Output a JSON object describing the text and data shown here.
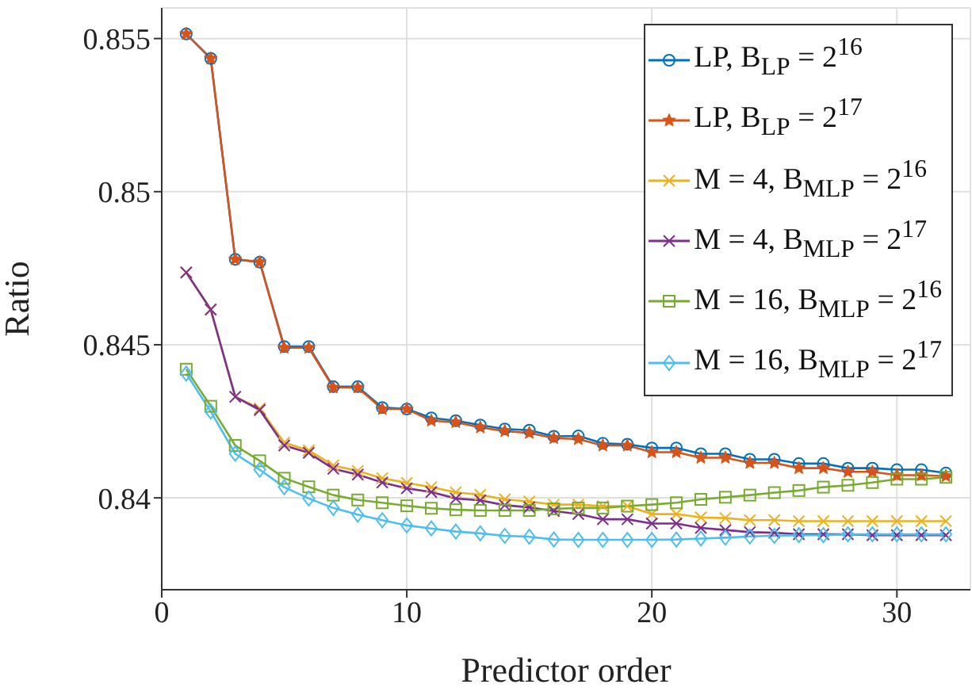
{
  "chart_data": {
    "type": "line",
    "xlabel": "Predictor order",
    "ylabel": "Ratio",
    "x": [
      1,
      2,
      3,
      4,
      5,
      6,
      7,
      8,
      9,
      10,
      11,
      12,
      13,
      14,
      15,
      16,
      17,
      18,
      19,
      20,
      21,
      22,
      23,
      24,
      25,
      26,
      27,
      28,
      29,
      30,
      31,
      32
    ],
    "xlim": [
      0,
      33
    ],
    "xticks": [
      0,
      10,
      20,
      30
    ],
    "ylim": [
      0.837,
      0.856
    ],
    "yticks": [
      0.84,
      0.845,
      0.85,
      0.855
    ],
    "grid": true,
    "legend": "top right",
    "line_style": "solid",
    "series": [
      {
        "name": "LP, B$_{LP}$ = 2$^{16}$",
        "color": "#0072bd",
        "marker": "circle",
        "values": [
          0.85515,
          0.85435,
          0.84779,
          0.8477,
          0.84494,
          0.84494,
          0.84363,
          0.84363,
          0.84295,
          0.8429,
          0.84261,
          0.84252,
          0.84238,
          0.84225,
          0.84221,
          0.84201,
          0.84202,
          0.84178,
          0.84175,
          0.84163,
          0.84163,
          0.84144,
          0.84144,
          0.84126,
          0.84126,
          0.84112,
          0.84112,
          0.84097,
          0.84097,
          0.84092,
          0.84092,
          0.84081
        ]
      },
      {
        "name": "LP, B$_{LP}$ = 2$^{17}$",
        "color": "#d95319",
        "marker": "star",
        "values": [
          0.85515,
          0.85435,
          0.84779,
          0.8477,
          0.8449,
          0.8449,
          0.8436,
          0.8436,
          0.8429,
          0.8429,
          0.84252,
          0.84247,
          0.8423,
          0.84218,
          0.84212,
          0.84195,
          0.84192,
          0.84171,
          0.84171,
          0.84149,
          0.84149,
          0.84131,
          0.84131,
          0.84114,
          0.84114,
          0.84097,
          0.84097,
          0.84085,
          0.84085,
          0.84074,
          0.84074,
          0.84071
        ]
      },
      {
        "name": "M = 4, B$_{MLP}$ = 2$^{16}$",
        "color": "#edb120",
        "marker": "cross",
        "values": [
          0.84736,
          0.84615,
          0.8433,
          0.84292,
          0.8418,
          0.84155,
          0.84106,
          0.84088,
          0.84064,
          0.84049,
          0.84035,
          0.84018,
          0.8401,
          0.83995,
          0.83988,
          0.83978,
          0.83978,
          0.83973,
          0.83973,
          0.83947,
          0.83947,
          0.83936,
          0.83934,
          0.83927,
          0.83927,
          0.83924,
          0.83924,
          0.83924,
          0.83924,
          0.83924,
          0.83924,
          0.83924
        ]
      },
      {
        "name": "M = 4, B$_{MLP}$ = 2$^{17}$",
        "color": "#7e2f8e",
        "marker": "cross",
        "values": [
          0.84736,
          0.84615,
          0.8433,
          0.84287,
          0.84171,
          0.84147,
          0.84095,
          0.84076,
          0.8405,
          0.84031,
          0.84019,
          0.83998,
          0.83992,
          0.83976,
          0.83969,
          0.83957,
          0.83947,
          0.8393,
          0.8393,
          0.83916,
          0.83916,
          0.83902,
          0.83895,
          0.83888,
          0.83886,
          0.83881,
          0.83881,
          0.83881,
          0.83878,
          0.83878,
          0.83878,
          0.83878
        ]
      },
      {
        "name": "M = 16, B$_{MLP}$ = 2$^{16}$",
        "color": "#77ac30",
        "marker": "square",
        "values": [
          0.8442,
          0.84299,
          0.84171,
          0.84121,
          0.84064,
          0.84036,
          0.84009,
          0.83993,
          0.83984,
          0.83974,
          0.83966,
          0.83961,
          0.83959,
          0.83959,
          0.83959,
          0.83964,
          0.83967,
          0.83967,
          0.83973,
          0.83978,
          0.83984,
          0.83995,
          0.84002,
          0.84009,
          0.84017,
          0.84024,
          0.84035,
          0.84041,
          0.8405,
          0.84061,
          0.84061,
          0.84067
        ]
      },
      {
        "name": "M = 16, B$_{MLP}$ = 2$^{17}$",
        "color": "#4dbeee",
        "marker": "diamond",
        "values": [
          0.84406,
          0.84282,
          0.84144,
          0.84092,
          0.84035,
          0.83998,
          0.83967,
          0.83945,
          0.83927,
          0.8391,
          0.839,
          0.8389,
          0.83884,
          0.83876,
          0.83873,
          0.83864,
          0.83863,
          0.83863,
          0.83863,
          0.83863,
          0.83864,
          0.83867,
          0.8387,
          0.83874,
          0.83876,
          0.83878,
          0.83878,
          0.83881,
          0.83881,
          0.83881,
          0.83881,
          0.83881
        ]
      }
    ]
  }
}
